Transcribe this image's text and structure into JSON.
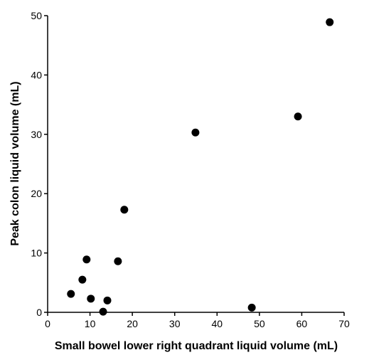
{
  "chart_data": {
    "type": "scatter",
    "x_label": "Small bowel lower right quadrant liquid volume (mL)",
    "y_label": "Peak colon liquid volume (mL)",
    "color": "#000000",
    "x": [
      66.6,
      59.1,
      34.9,
      18.1,
      9.2,
      8.2,
      16.6,
      5.5,
      10.2,
      14.1,
      13.1,
      48.2
    ],
    "values": [
      48.9,
      33.0,
      30.3,
      17.3,
      8.9,
      5.5,
      8.6,
      3.1,
      2.3,
      2.0,
      0.1,
      0.8
    ],
    "xlim": [
      0,
      70
    ],
    "ylim": [
      0,
      50
    ],
    "xticks": [
      0,
      10,
      20,
      30,
      40,
      50,
      60,
      70
    ],
    "yticks": [
      0,
      10,
      20,
      30,
      40,
      50
    ]
  }
}
